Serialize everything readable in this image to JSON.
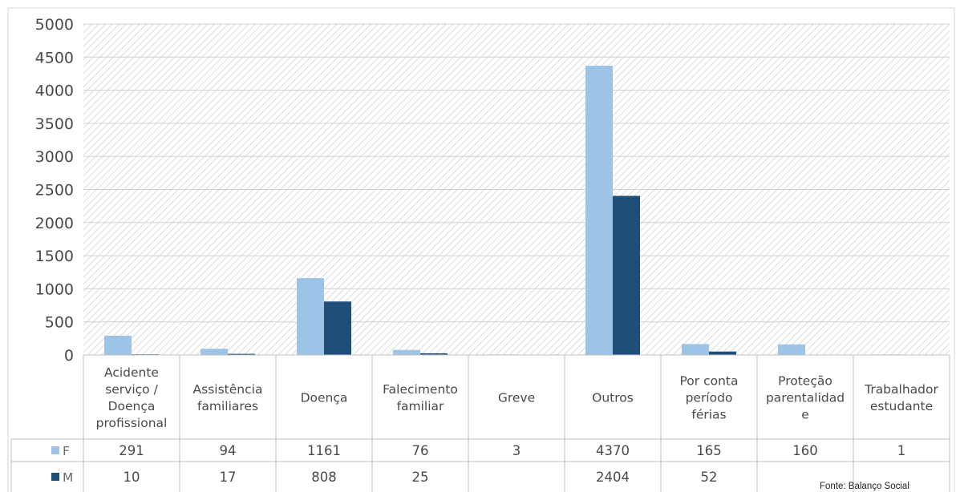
{
  "source_note": "Fonte: Balanço Social",
  "colors": {
    "F": "#9dc3e6",
    "M": "#1f4e79",
    "grid": "#d0d0d0",
    "hatch": "#cfcfcf",
    "table_border": "#bfbfbf"
  },
  "chart_data": {
    "type": "bar",
    "ylim": [
      0,
      5000
    ],
    "y_ticks": [
      "0",
      "500",
      "1000",
      "1500",
      "2000",
      "2500",
      "3000",
      "3500",
      "4000",
      "4500",
      "5000"
    ],
    "categories": [
      [
        "Acidente",
        "serviço /",
        "Doença",
        "profissional"
      ],
      [
        "Assistência",
        "familiares"
      ],
      [
        "Doença"
      ],
      [
        "Falecimento",
        "familiar"
      ],
      [
        "Greve"
      ],
      [
        "Outros"
      ],
      [
        "Por conta",
        "período",
        "férias"
      ],
      [
        "Proteção",
        "parentalidad",
        "e"
      ],
      [
        "Trabalhador",
        "estudante"
      ]
    ],
    "series": [
      {
        "name": "F",
        "values": [
          291,
          94,
          1161,
          76,
          3,
          4370,
          165,
          160,
          1
        ],
        "labels": [
          "291",
          "94",
          "1161",
          "76",
          "3",
          "4370",
          "165",
          "160",
          "1"
        ]
      },
      {
        "name": "M",
        "values": [
          10,
          17,
          808,
          25,
          null,
          2404,
          52,
          null,
          null
        ],
        "labels": [
          "10",
          "17",
          "808",
          "25",
          "",
          "2404",
          "52",
          "",
          ""
        ]
      }
    ],
    "legend": "data-table"
  }
}
